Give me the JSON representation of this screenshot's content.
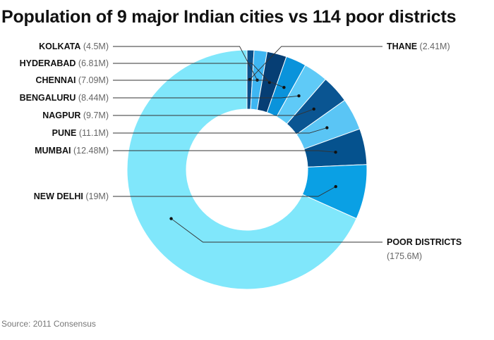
{
  "chart_data": {
    "type": "pie",
    "title": "Population of 9 major Indian cities vs 114 poor districts",
    "source": "Source: 2011 Consensus",
    "categories": [
      "THANE",
      "KOLKATA",
      "HYDERABAD",
      "CHENNAI",
      "BENGALURU",
      "NAGPUR",
      "PUNE",
      "MUMBAI",
      "NEW DELHI",
      "POOR DISTRICTS"
    ],
    "values": [
      2.41,
      4.5,
      6.81,
      7.09,
      8.44,
      9.7,
      11.1,
      12.48,
      19,
      175.6
    ],
    "value_labels": [
      "(2.41M)",
      "(4.5M)",
      "(6.81M)",
      "(7.09M)",
      "(8.44M)",
      "(9.7M)",
      "(11.1M)",
      "(12.48M)",
      "(19M)",
      "(175.6M)"
    ],
    "colors": [
      "#0b4f8a",
      "#3fb6f2",
      "#063e74",
      "#0a93db",
      "#5fcaf7",
      "#0a5592",
      "#5ac5f5",
      "#05528e",
      "#0aa0e4",
      "#80e7fb"
    ],
    "donut": true,
    "legend": "none"
  }
}
